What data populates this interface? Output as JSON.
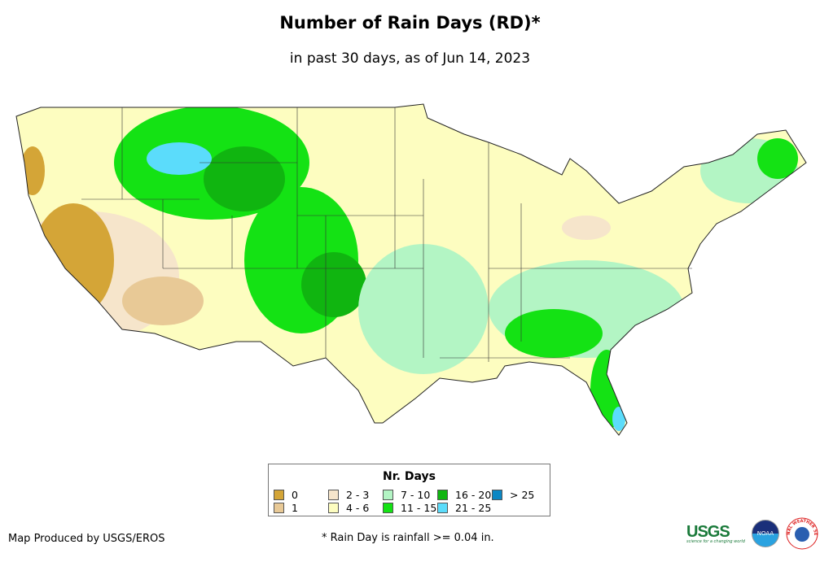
{
  "title": "Number of Rain Days (RD)*",
  "subtitle": "in past 30 days, as of Jun 14, 2023",
  "legend": {
    "title": "Nr. Days",
    "items": [
      {
        "label": "0",
        "color": "#d4a537"
      },
      {
        "label": "1",
        "color": "#e8c996"
      },
      {
        "label": "2 - 3",
        "color": "#f6e5cb"
      },
      {
        "label": "4 - 6",
        "color": "#fdfdc0"
      },
      {
        "label": "7 - 10",
        "color": "#b3f5c4"
      },
      {
        "label": "11 - 15",
        "color": "#14e214"
      },
      {
        "label": "16 - 20",
        "color": "#10b510"
      },
      {
        "label": "21 - 25",
        "color": "#5bdcfb"
      },
      {
        "label": "> 25",
        "color": "#0b87c4"
      }
    ]
  },
  "credit": "Map Produced by USGS/EROS",
  "footnote": "* Rain Day is rainfall >= 0.04 in.",
  "logos": {
    "usgs": "USGS",
    "usgs_tagline": "science for a changing world",
    "noaa": "NOAA",
    "nws": "NATIONAL WEATHER SERVICE"
  }
}
